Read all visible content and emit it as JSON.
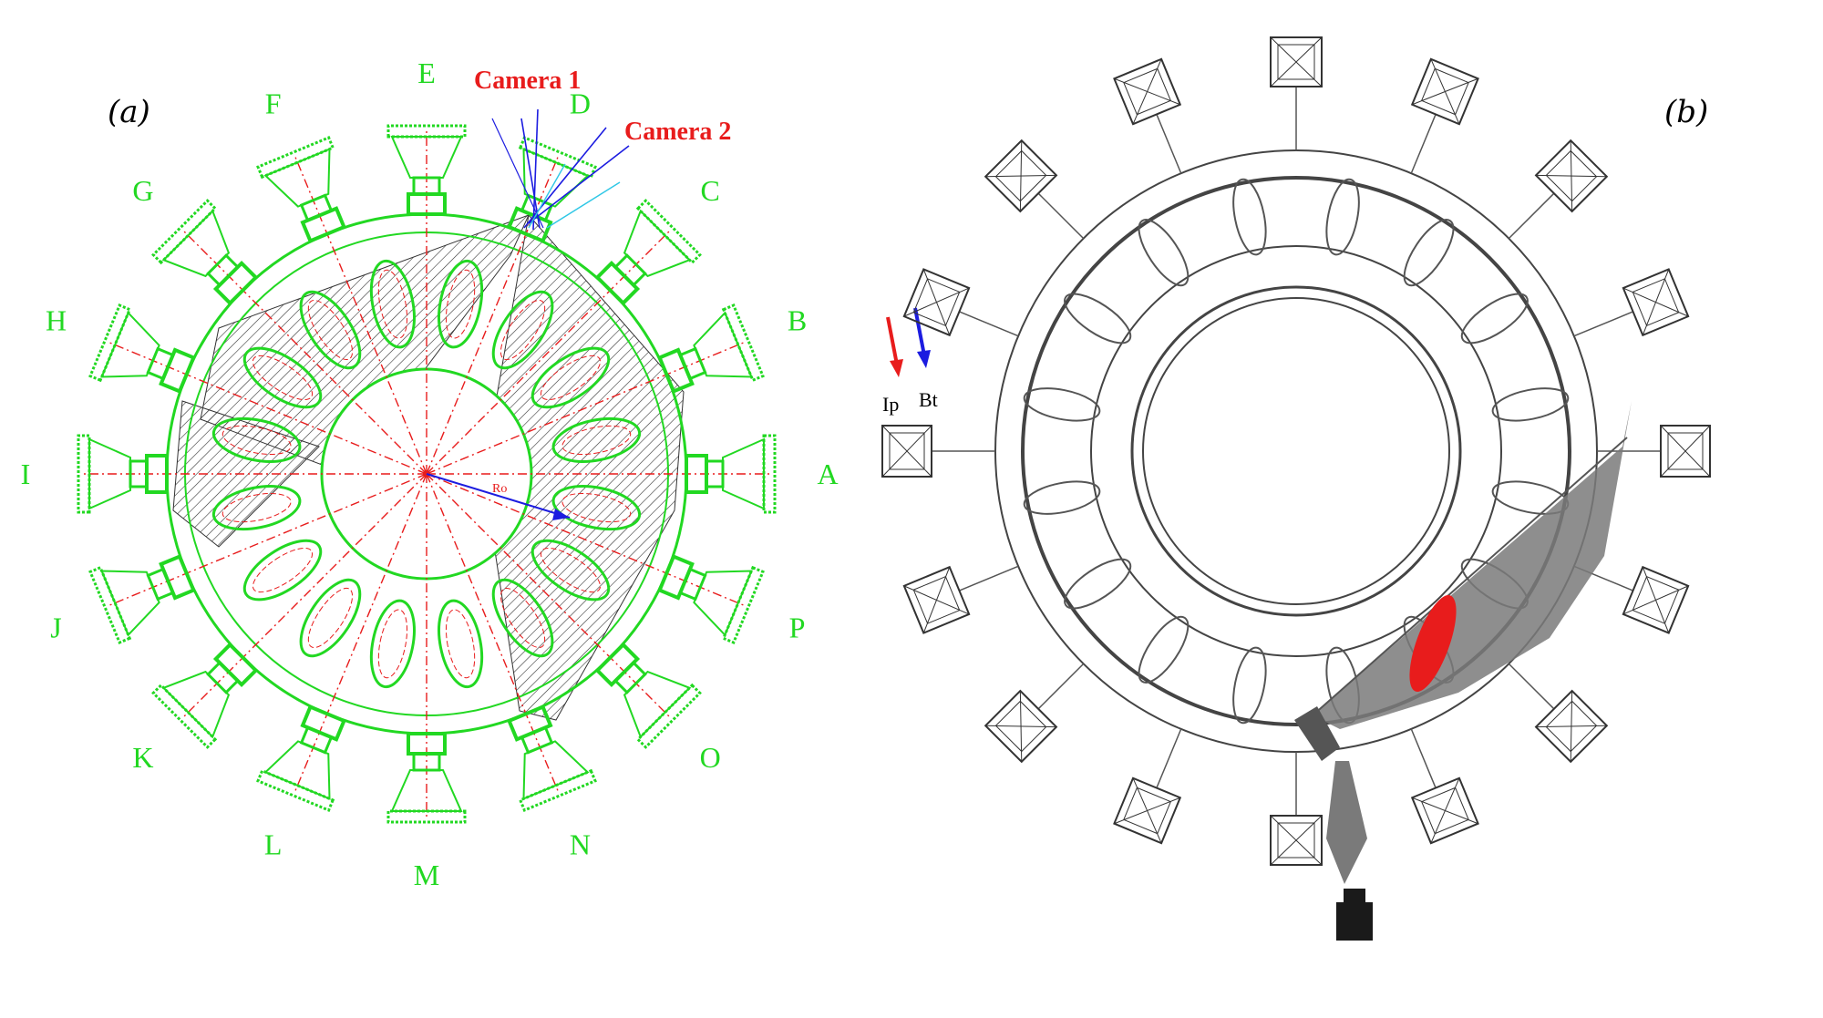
{
  "panels": {
    "a_label": "(a)",
    "b_label": "(b)"
  },
  "ports": [
    "A",
    "B",
    "C",
    "D",
    "E",
    "F",
    "G",
    "H",
    "I",
    "J",
    "K",
    "L",
    "M",
    "N",
    "O",
    "P"
  ],
  "cameras": {
    "camera1": "Camera 1",
    "camera2": "Camera 2"
  },
  "center_label": "Ro",
  "field_arrows": {
    "ip_label": "Ip",
    "bt_label": "Bt"
  },
  "colors": {
    "green": "#22d822",
    "red": "#e81c1c",
    "blue": "#1c1ce0",
    "gray": "#808080",
    "black": "#000000"
  }
}
